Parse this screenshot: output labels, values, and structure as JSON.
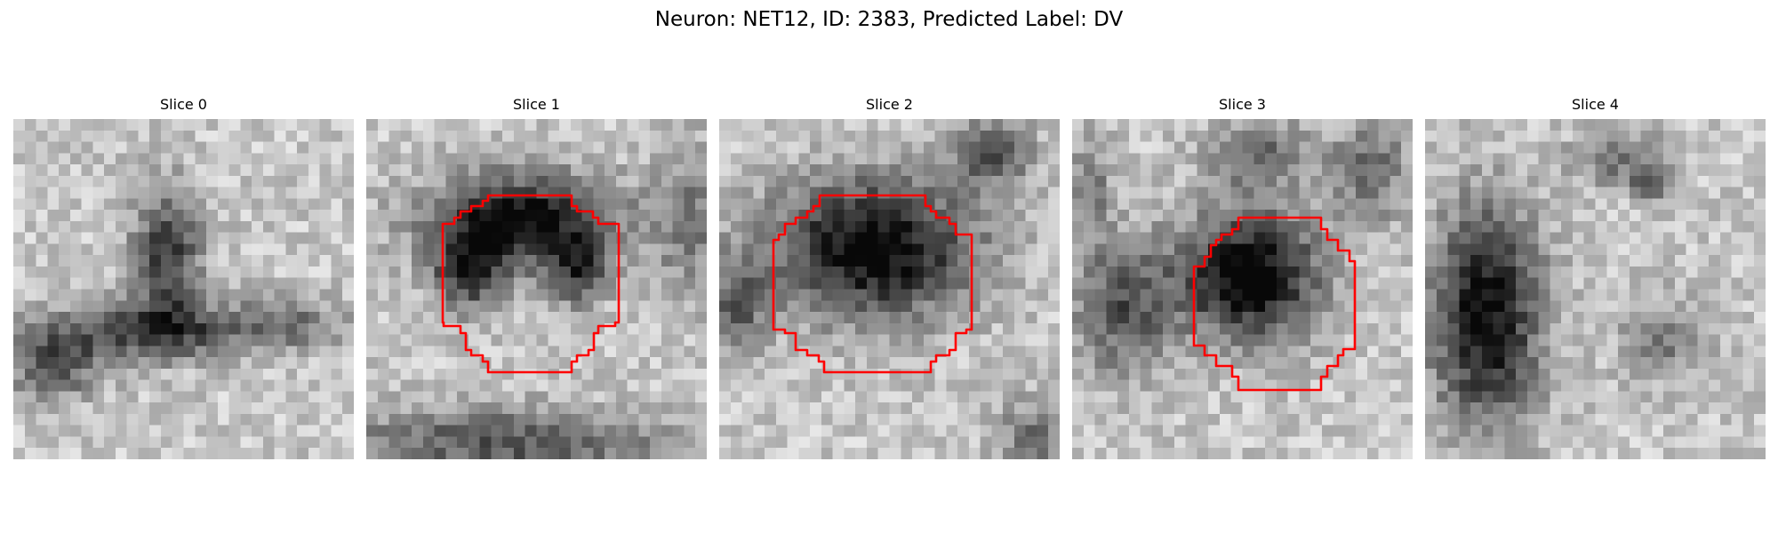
{
  "figure": {
    "title": "Neuron: NET12, ID: 2383, Predicted Label: DV"
  },
  "colors": {
    "contour": "#ff0000",
    "background": "#ffffff"
  },
  "slices": [
    {
      "title": "Slice 0",
      "has_contour": false
    },
    {
      "title": "Slice 1",
      "has_contour": true
    },
    {
      "title": "Slice 2",
      "has_contour": true
    },
    {
      "title": "Slice 3",
      "has_contour": true
    },
    {
      "title": "Slice 4",
      "has_contour": false
    }
  ]
}
